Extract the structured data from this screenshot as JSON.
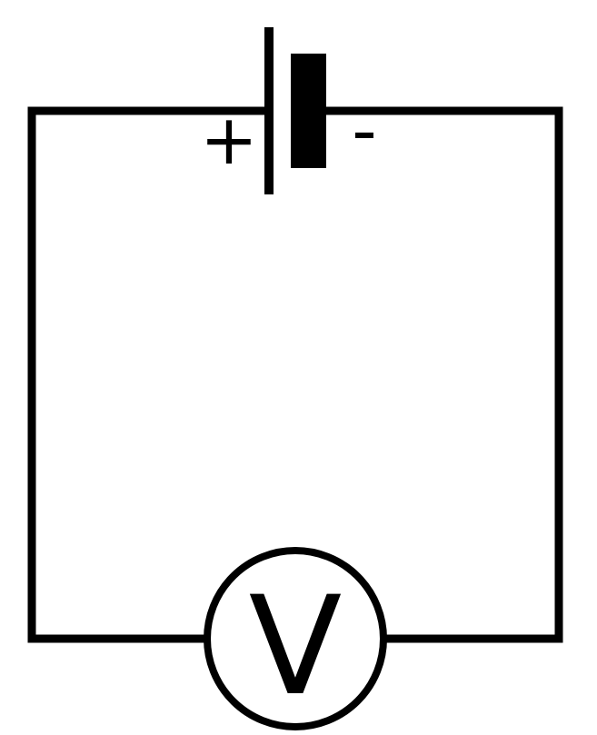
{
  "diagram": {
    "battery": {
      "positive_label": "+",
      "negative_label": "-"
    },
    "voltmeter": {
      "label": "V"
    },
    "colors": {
      "stroke": "#000000",
      "background": "#ffffff"
    }
  }
}
